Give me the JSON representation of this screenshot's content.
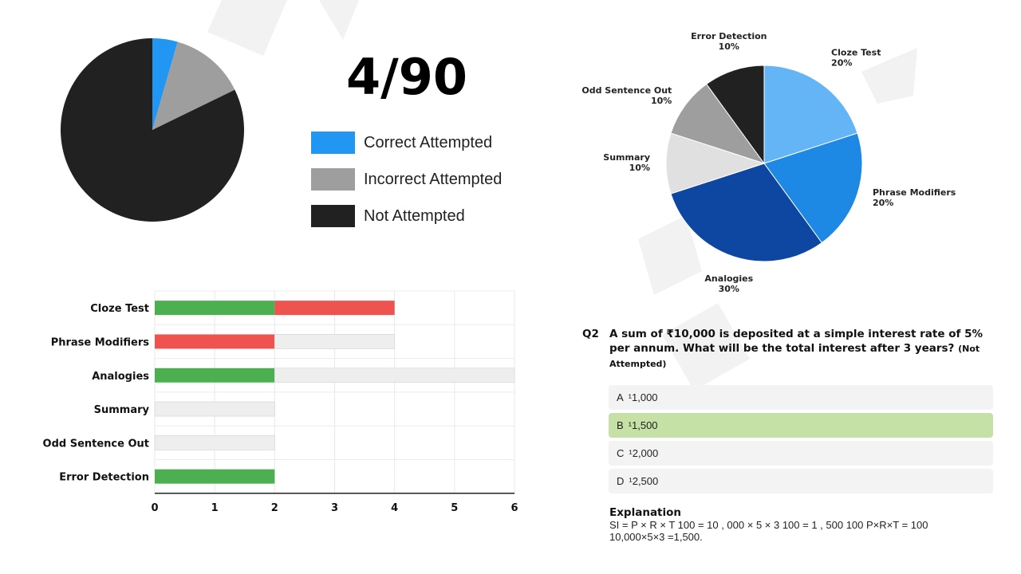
{
  "score": {
    "text": "4/90"
  },
  "chart_data": [
    {
      "type": "pie",
      "categories": [
        "Correct Attempted",
        "Incorrect Attempted",
        "Not Attempted"
      ],
      "values": [
        4,
        12,
        74
      ],
      "colors": [
        "#2196f3",
        "#9e9e9e",
        "#212121"
      ],
      "legend": "right"
    },
    {
      "type": "pie",
      "categories": [
        "Cloze Test",
        "Phrase Modifiers",
        "Analogies",
        "Summary",
        "Odd Sentence Out",
        "Error Detection"
      ],
      "values": [
        20,
        20,
        30,
        10,
        10,
        10
      ],
      "labels": [
        "20%",
        "20%",
        "30%",
        "10%",
        "10%",
        "10%"
      ],
      "colors": [
        "#64b5f6",
        "#1e88e5",
        "#0d47a1",
        "#e0e0e0",
        "#9e9e9e",
        "#212121"
      ]
    },
    {
      "type": "bar",
      "orientation": "horizontal",
      "stacked": true,
      "categories": [
        "Cloze Test",
        "Phrase Modifiers",
        "Analogies",
        "Summary",
        "Odd Sentence Out",
        "Error Detection"
      ],
      "series": [
        {
          "values": [
            2,
            0,
            2,
            0,
            0,
            2
          ],
          "color": "#4caf50"
        },
        {
          "values": [
            2,
            2,
            0,
            0,
            0,
            0
          ],
          "color": "#ef5350"
        },
        {
          "values": [
            0,
            2,
            4,
            2,
            2,
            0
          ],
          "color": "#eeeeee"
        }
      ],
      "xlim": [
        0,
        6
      ],
      "xticks": [
        "0",
        "1",
        "2",
        "3",
        "4",
        "5",
        "6"
      ],
      "grid": true
    }
  ],
  "question": {
    "number": "Q2",
    "text": "A sum of ₹10,000 is deposited at a simple interest rate of 5% per annum. What will be the total interest after 3 years?",
    "status": "(Not Attempted)",
    "options": [
      {
        "letter": "A",
        "text": "¹1,000",
        "correct": false
      },
      {
        "letter": "B",
        "text": "¹1,500",
        "correct": true
      },
      {
        "letter": "C",
        "text": "¹2,000",
        "correct": false
      },
      {
        "letter": "D",
        "text": "¹2,500",
        "correct": false
      }
    ],
    "explanation_title": "Explanation",
    "explanation_text": "SI =  P × R × T 100 = 10 , 000 × 5 × 3 100 = 1 , 500 100 P×R×T   =  100 10,000×5×3   =1,500."
  },
  "watermark": {
    "color": "#f2f2f2"
  }
}
